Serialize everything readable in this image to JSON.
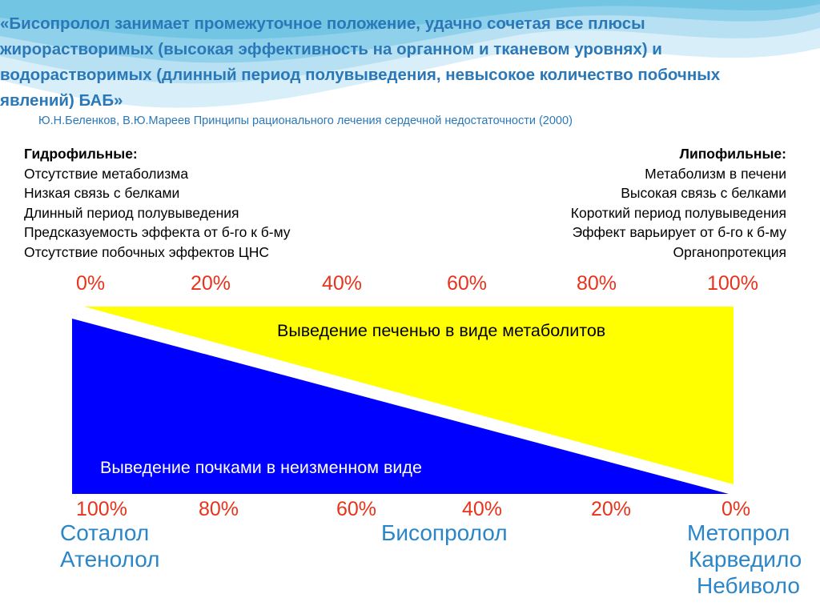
{
  "title": {
    "lines": [
      "«Бисопролол занимает промежуточное положение, удачно сочетая все плюсы",
      "жирорастворимых (высокая эффективность на органном и тканевом уровнях) и",
      "водорастворимых (длинный период полувыведения, невысокое количество побочных",
      "явлений) БАБ»"
    ]
  },
  "reference": "Ю.Н.Беленков, В.Ю.Мареев Принципы рационального лечения сердечной недостаточности  (2000)",
  "hydrophilic": {
    "heading": "Гидрофильные:",
    "items": [
      "Отсутствие метаболизма",
      "Низкая связь с белками",
      "Длинный период полувыведения",
      "Предсказуемость эффекта от б-го к б-му",
      "Отсутствие побочных  эффектов ЦНС"
    ]
  },
  "lipophilic": {
    "heading": "Липофильные:",
    "items": [
      "Метаболизм в печени",
      "Высокая связь с белками",
      "Короткий период полувыведения",
      "Эффект варьирует от б-го к б-му",
      "Органопротекция"
    ]
  },
  "scale_top": [
    "0%",
    "20%",
    "40%",
    "60%",
    "80%",
    "100%"
  ],
  "scale_bottom": [
    "100%",
    "80%",
    "60%",
    "40%",
    "20%",
    "0%"
  ],
  "diagram": {
    "liver_label": "Выведение печенью в виде метаболитов",
    "kidney_label": "Выведение почками в неизменном виде",
    "colors": {
      "liver": "#ffff00",
      "kidney": "#0000ff"
    }
  },
  "drugs": {
    "left": [
      "Соталол",
      "Атенолол"
    ],
    "middle": [
      "Бисопролол"
    ],
    "right": [
      "Метопрол",
      "Карведило",
      "Небиволо"
    ]
  },
  "colors": {
    "heading": "#2a78b8",
    "percent": "#e8331c",
    "drug": "#2a86c8"
  }
}
